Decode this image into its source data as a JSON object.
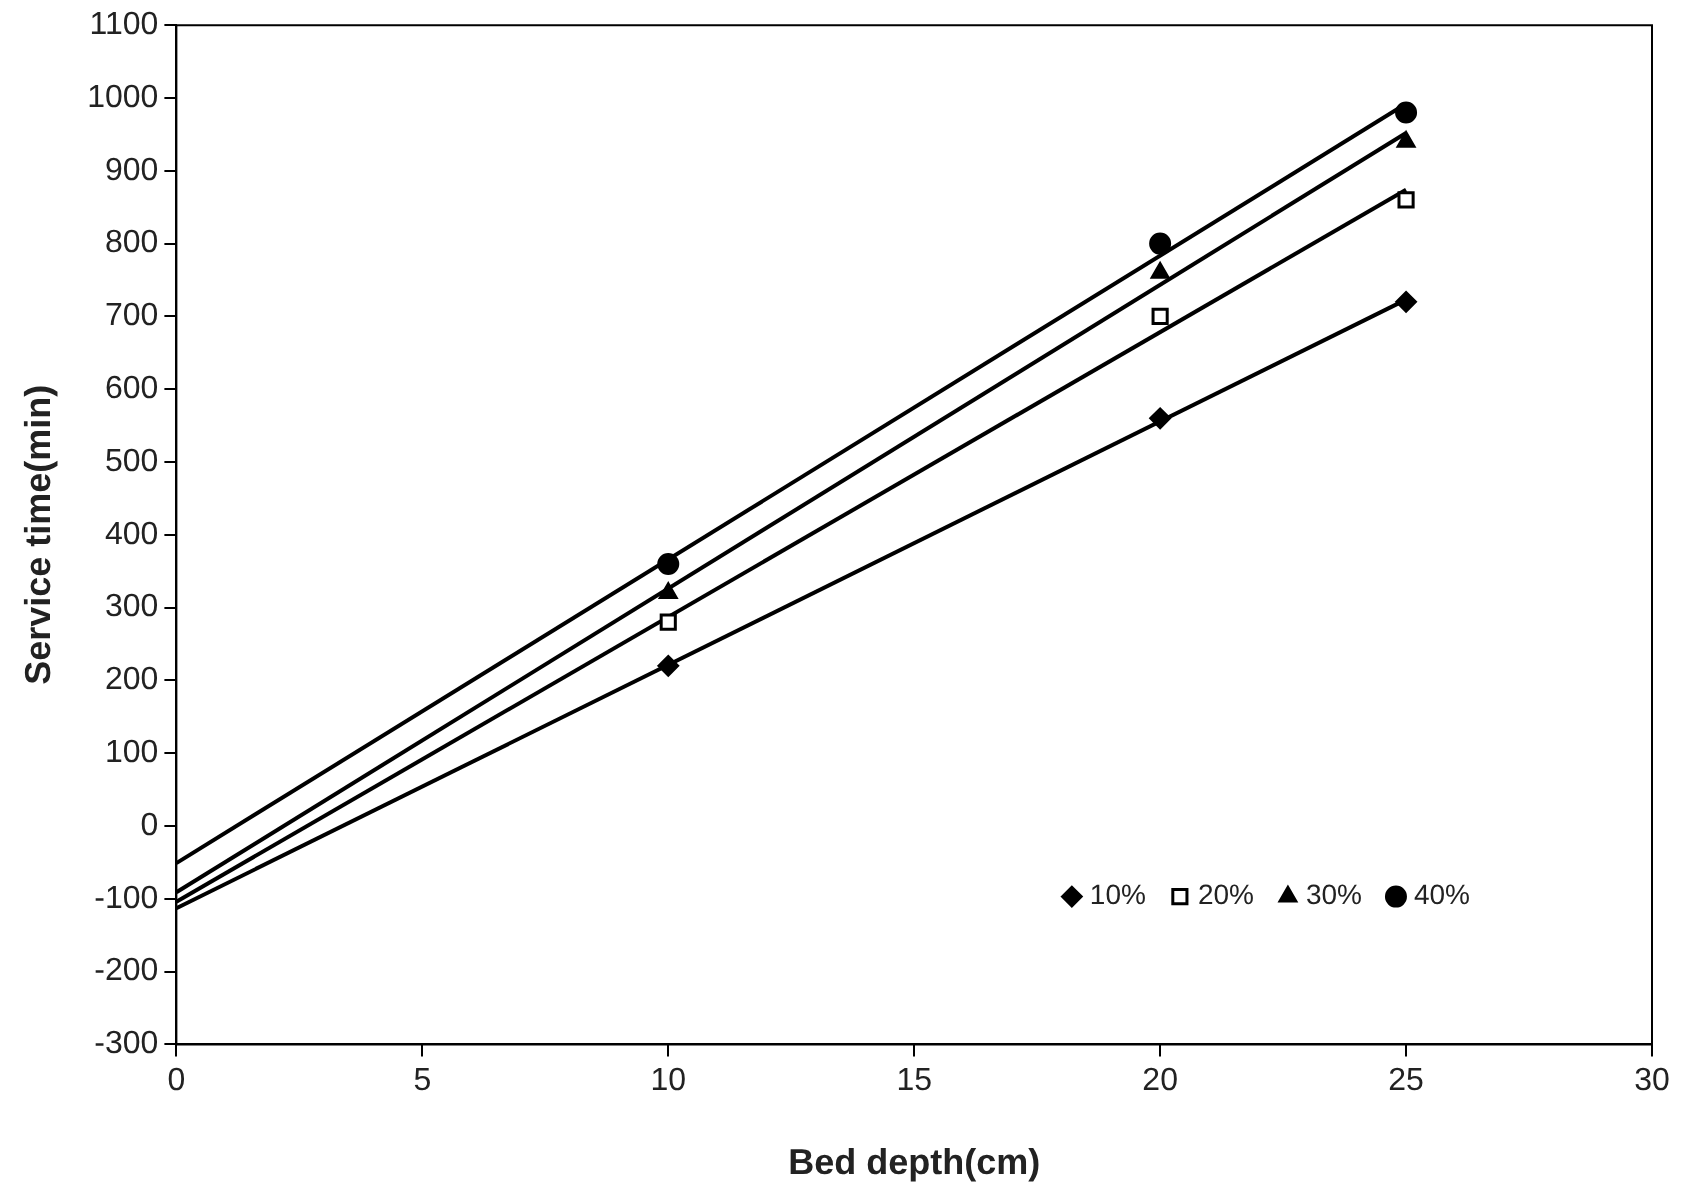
{
  "chart_data": {
    "type": "scatter",
    "xlabel": "Bed depth(cm)",
    "ylabel": "Service time(min)",
    "xlim": [
      0,
      30
    ],
    "xticks": [
      0,
      5,
      10,
      15,
      20,
      25,
      30
    ],
    "ylim": [
      -300,
      1100
    ],
    "yticks": [
      -300,
      -200,
      -100,
      0,
      100,
      200,
      300,
      400,
      500,
      600,
      700,
      800,
      900,
      1000,
      1100
    ],
    "grid": false,
    "legend": "bottom right",
    "series": [
      {
        "name": "10%",
        "color": "#000000",
        "marker": "diamond",
        "x": [
          10,
          20,
          25
        ],
        "values": [
          220,
          560,
          720
        ]
      },
      {
        "name": "20%",
        "color": "#000000",
        "marker": "square",
        "x": [
          10,
          20,
          25
        ],
        "values": [
          280,
          700,
          860
        ]
      },
      {
        "name": "30%",
        "color": "#000000",
        "marker": "triangle",
        "x": [
          10,
          20,
          25
        ],
        "values": [
          320,
          760,
          940
        ]
      },
      {
        "name": "40%",
        "color": "#000000",
        "marker": "circle",
        "x": [
          10,
          20,
          25
        ],
        "values": [
          360,
          800,
          980
        ]
      },
      {
        "type": "line",
        "color": "#000000",
        "marker": "none",
        "x": [
          0,
          25
        ],
        "values": [
          -113,
          723
        ]
      },
      {
        "type": "line",
        "color": "#000000",
        "marker": "none",
        "x": [
          0,
          25
        ],
        "values": [
          -104,
          874
        ]
      },
      {
        "type": "line",
        "color": "#000000",
        "marker": "none",
        "x": [
          0,
          25
        ],
        "values": [
          -91,
          952
        ]
      },
      {
        "type": "line",
        "color": "#000000",
        "marker": "none",
        "x": [
          0,
          25
        ],
        "values": [
          -51,
          992
        ]
      }
    ]
  }
}
